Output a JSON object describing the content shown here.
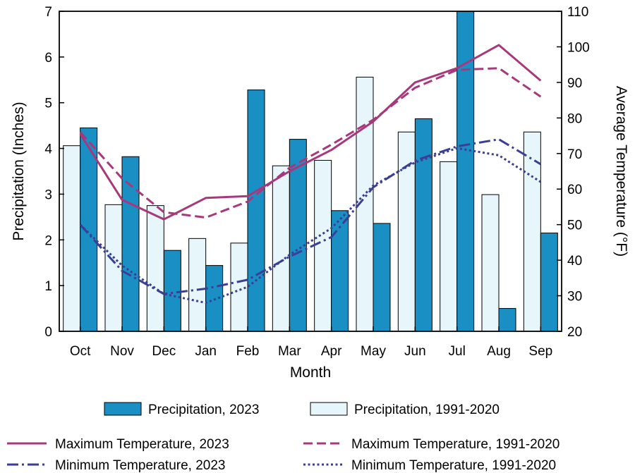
{
  "chart_data": {
    "type": "bar",
    "categories": [
      "Oct",
      "Nov",
      "Dec",
      "Jan",
      "Feb",
      "Mar",
      "Apr",
      "May",
      "Jun",
      "Jul",
      "Aug",
      "Sep"
    ],
    "xlabel": "Month",
    "ylabel": "Precipitation (Inches)",
    "y2label": "Average Temperature (°F)",
    "ylim": [
      0,
      7
    ],
    "y2lim": [
      20,
      110
    ],
    "yticks": [
      0,
      1,
      2,
      3,
      4,
      5,
      6,
      7
    ],
    "y2ticks": [
      20,
      30,
      40,
      50,
      60,
      70,
      80,
      90,
      100,
      110
    ],
    "grid": false,
    "legend_position": "bottom",
    "bar_series": [
      {
        "name": "Precipitation, 1991-2020",
        "color": "#e6f6fb",
        "values": [
          4.06,
          2.77,
          2.75,
          2.03,
          1.93,
          3.62,
          3.74,
          5.56,
          4.36,
          3.71,
          2.99,
          4.36
        ]
      },
      {
        "name": "Precipitation, 2023",
        "color": "#1a8fc4",
        "values": [
          4.45,
          3.82,
          1.77,
          1.44,
          5.28,
          4.2,
          2.64,
          2.36,
          4.65,
          7.0,
          0.5,
          2.15
        ]
      }
    ],
    "line_series": [
      {
        "name": "Maximum Temperature, 2023",
        "color": "#a8387c",
        "dash": "solid",
        "values": [
          75.5,
          57,
          51.5,
          57.5,
          58,
          65,
          71,
          79,
          90,
          94,
          100.5,
          90.5
        ]
      },
      {
        "name": "Maximum Temperature, 1991-2020",
        "color": "#a8387c",
        "dash": "dashed",
        "values": [
          76,
          63,
          53.5,
          52,
          56.5,
          66,
          72.5,
          79.5,
          88.5,
          93.5,
          94,
          86
        ]
      },
      {
        "name": "Minimum Temperature, 2023",
        "color": "#3a3f93",
        "dash": "dashdot",
        "values": [
          50,
          37,
          30.5,
          32,
          34.5,
          41,
          46.5,
          60.5,
          68,
          72,
          74,
          67
        ]
      },
      {
        "name": "Minimum Temperature, 1991-2020",
        "color": "#3a3f93",
        "dash": "dotted",
        "values": [
          50,
          38.5,
          30.5,
          28,
          32.5,
          41.5,
          49,
          61,
          67.5,
          71.5,
          69.5,
          62
        ]
      }
    ],
    "legend_order": [
      "Precipitation, 2023",
      "Precipitation, 1991-2020",
      "Maximum Temperature, 2023",
      "Maximum Temperature, 1991-2020",
      "Minimum Temperature, 2023",
      "Minimum Temperature, 1991-2020"
    ]
  }
}
